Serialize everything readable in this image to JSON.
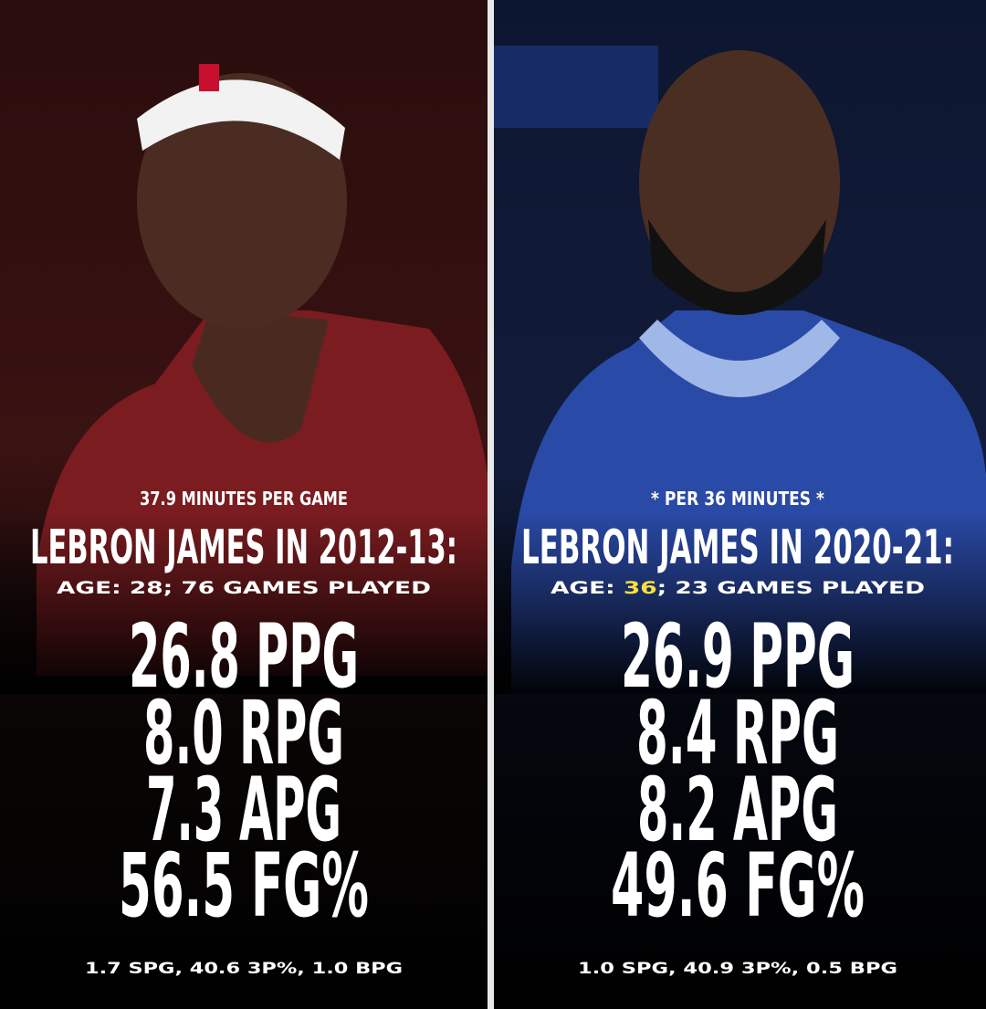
{
  "panels": [
    {
      "note": "37.9 MINUTES PER GAME",
      "heading": "LEBRON JAMES IN 2012-13:",
      "info": [
        {
          "text": "AGE: 28; 76 GAMES PLAYED",
          "color": "#ffffff"
        }
      ],
      "stats": [
        {
          "text": "26.8 PPG",
          "color": "#ffffff"
        },
        {
          "text": "8.0 RPG",
          "color": "#ffffff"
        },
        {
          "text": "7.3 APG",
          "color": "#ffffff"
        },
        {
          "text": "56.5 FG%",
          "color": "#f03a22"
        }
      ],
      "footer": "1.7 SPG, 40.6 3P%, 1.0 BPG"
    },
    {
      "note": "* PER 36 MINUTES *",
      "heading": "LEBRON JAMES IN 2020-21:",
      "info": [
        {
          "text": "AGE: ",
          "color": "#ffffff"
        },
        {
          "text": "36",
          "color": "#f7e23c"
        },
        {
          "text": "; 23 GAMES PLAYED",
          "color": "#ffffff"
        }
      ],
      "stats": [
        {
          "text": "26.9 PPG",
          "color": "#8f4fe8"
        },
        {
          "text": "8.4 RPG",
          "color": "#8f4fe8"
        },
        {
          "text": "8.2 APG",
          "color": "#8f4fe8"
        },
        {
          "text": "49.6 FG%",
          "color": "#ffffff"
        }
      ],
      "footer": "1.0 SPG, 40.9 3P%, 0.5 BPG"
    }
  ]
}
